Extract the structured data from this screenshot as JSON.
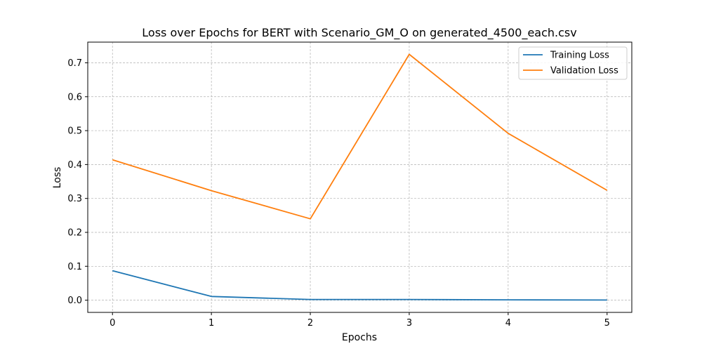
{
  "chart_data": {
    "type": "line",
    "title": "Loss over Epochs for BERT with Scenario_GM_O on generated_4500_each.csv",
    "xlabel": "Epochs",
    "ylabel": "Loss",
    "x": [
      0,
      1,
      2,
      3,
      4,
      5
    ],
    "xticks": [
      "0",
      "1",
      "2",
      "3",
      "4",
      "5"
    ],
    "yticks": [
      "0.0",
      "0.1",
      "0.2",
      "0.3",
      "0.4",
      "0.5",
      "0.6",
      "0.7"
    ],
    "xlim": [
      -0.25,
      5.25
    ],
    "ylim": [
      -0.036,
      0.761
    ],
    "grid": true,
    "legend_position": "top-right",
    "series": [
      {
        "name": "Training Loss",
        "color": "#1f77b4",
        "values": [
          0.087,
          0.011,
          0.002,
          0.002,
          0.001,
          0.0005
        ]
      },
      {
        "name": "Validation Loss",
        "color": "#ff7f0e",
        "values": [
          0.414,
          0.323,
          0.24,
          0.725,
          0.492,
          0.324
        ]
      }
    ]
  }
}
